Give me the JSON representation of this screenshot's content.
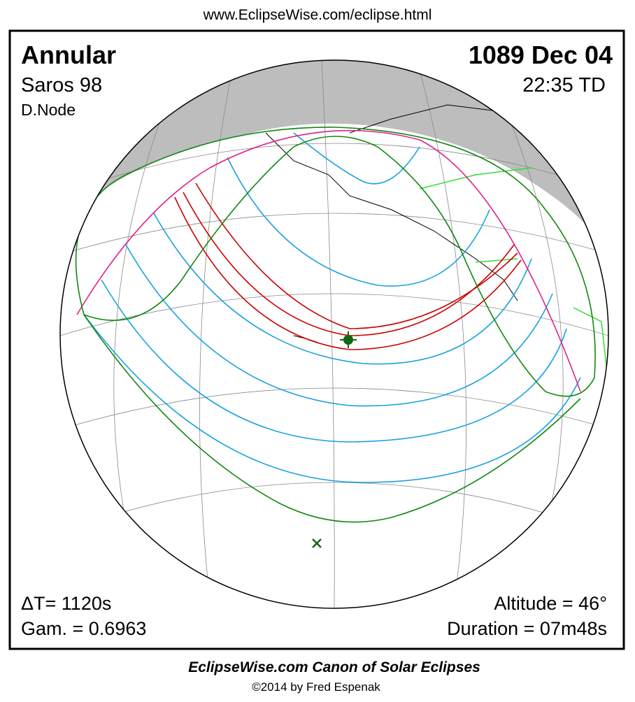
{
  "header": {
    "url": "www.EclipseWise.com/eclipse.html"
  },
  "eclipse": {
    "type": "Annular",
    "saros": "Saros  98",
    "node": "D.Node",
    "date": "1089 Dec 04",
    "time": "22:35 TD",
    "delta_t": "ΔT=   1120s",
    "gamma": "Gam. = 0.6963",
    "altitude": "Altitude = 46°",
    "duration": "Duration = 07m48s"
  },
  "footer": {
    "title": "EclipseWise.com Canon of Solar Eclipses",
    "copyright": "©2014 by Fred Espenak"
  }
}
